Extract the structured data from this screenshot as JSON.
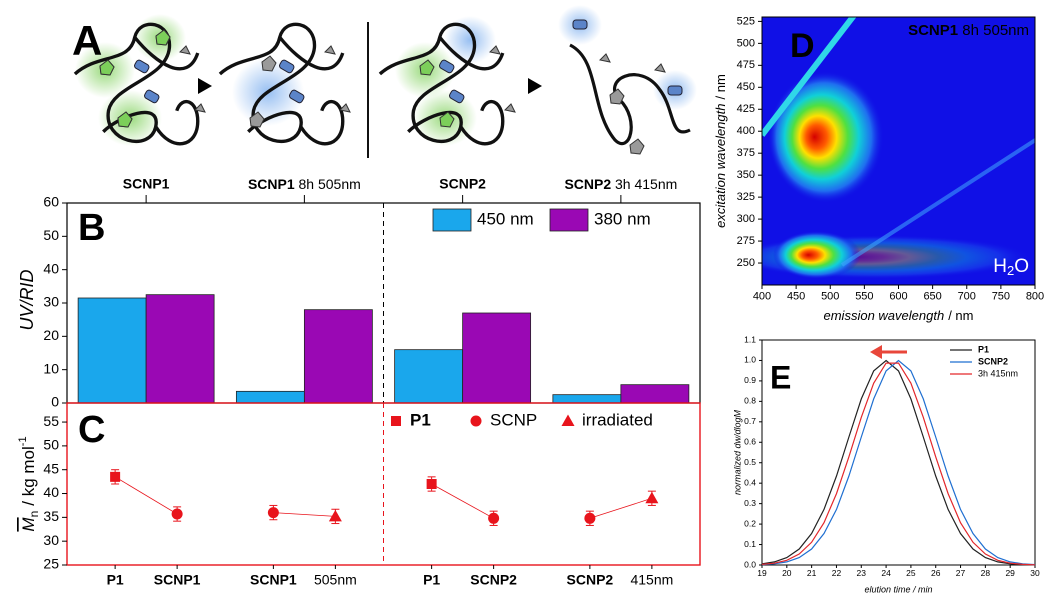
{
  "panel_labels": [
    "A",
    "B",
    "C",
    "D",
    "E"
  ],
  "chart_data": [
    {
      "type": "bar",
      "ylabel": "UV/RID",
      "ylim": [
        0,
        60
      ],
      "yticks": [
        0,
        10,
        20,
        30,
        40,
        50,
        60
      ],
      "categories": [
        "SCNP1",
        "SCNP1 8h 505nm",
        "SCNP2",
        "SCNP2 3h 415nm"
      ],
      "series": [
        {
          "name": "450 nm",
          "color": "#1aa7ec",
          "values": [
            31.5,
            3.5,
            16,
            2.5
          ]
        },
        {
          "name": "380 nm",
          "color": "#9a08b4",
          "values": [
            32.5,
            28,
            27,
            5.5
          ]
        }
      ],
      "legend": "top-right"
    },
    {
      "type": "errorbar",
      "color": "#e8141c",
      "ylabel": {
        "symbol": "M",
        "subscript": "n",
        "unit": "/ kg mol",
        "superscript": "-1"
      },
      "ylim": [
        25,
        59
      ],
      "yticks": [
        25,
        30,
        35,
        40,
        45,
        50,
        55
      ],
      "categories": [
        "P1",
        "SCNP1",
        "SCNP1",
        "505nm",
        "P1",
        "SCNP2",
        "SCNP2",
        "415nm"
      ],
      "bold_categories": [
        true,
        true,
        true,
        false,
        true,
        true,
        true,
        false
      ],
      "values": [
        43.5,
        35.7,
        36,
        35.2,
        42,
        34.8,
        34.8,
        39
      ],
      "errors": [
        1.5,
        1.5,
        1.5,
        1.5,
        1.5,
        1.5,
        1.5,
        1.5
      ],
      "markers": [
        "square",
        "circle",
        "circle",
        "triangle",
        "square",
        "circle",
        "circle",
        "triangle"
      ],
      "legend": [
        {
          "name": "P1",
          "marker": "square",
          "bold": true
        },
        {
          "name": "SCNP",
          "marker": "circle",
          "bold": false
        },
        {
          "name": "irradiated",
          "marker": "triangle",
          "bold": false
        }
      ]
    },
    {
      "type": "heatmap",
      "title": "SCNP1 8h 505nm",
      "annotation": {
        "text": "H",
        "subscript": "2",
        "rest": "O"
      },
      "xlabel": {
        "text": "emission wavelength",
        "unit": "/ nm"
      },
      "ylabel": {
        "text": "excitation wavelength",
        "unit": "/ nm"
      },
      "xlim": [
        400,
        800
      ],
      "xticks": [
        400,
        450,
        500,
        550,
        600,
        650,
        700,
        750,
        800
      ],
      "ylim": [
        225,
        530
      ],
      "yticks": [
        250,
        275,
        300,
        325,
        350,
        375,
        400,
        425,
        450,
        475,
        500,
        525
      ]
    },
    {
      "type": "line",
      "xlabel": "elution time / min",
      "ylabel": "normalized dw/dlogM",
      "xlim": [
        19,
        30
      ],
      "xticks": [
        19,
        20,
        21,
        22,
        23,
        24,
        25,
        26,
        27,
        28,
        29,
        30
      ],
      "ylim": [
        0,
        1.1
      ],
      "yticks": [
        {
          "value": 0,
          "label": "0.0"
        },
        0.1,
        0.2,
        0.3,
        0.4,
        0.5,
        0.6,
        0.7,
        0.8,
        0.9,
        {
          "value": 1,
          "label": "1.0"
        },
        1.1
      ],
      "x": [
        19,
        19.5,
        20,
        20.5,
        21,
        21.5,
        22,
        22.5,
        23,
        23.5,
        24,
        24.5,
        25,
        25.5,
        26,
        26.5,
        27,
        27.5,
        28,
        28.5,
        29,
        29.5,
        30
      ],
      "series": [
        {
          "name": "P1",
          "color": "#222222",
          "bold": true,
          "values": [
            0.006,
            0.015,
            0.036,
            0.078,
            0.154,
            0.272,
            0.435,
            0.626,
            0.812,
            0.949,
            1.0,
            0.949,
            0.812,
            0.626,
            0.435,
            0.272,
            0.154,
            0.078,
            0.036,
            0.015,
            0.006,
            0.002,
            0.001
          ]
        },
        {
          "name": "SCNP2",
          "color": "#1f6fd1",
          "bold": true,
          "values": [
            0.002,
            0.006,
            0.015,
            0.036,
            0.078,
            0.154,
            0.272,
            0.435,
            0.626,
            0.812,
            0.949,
            1.0,
            0.949,
            0.812,
            0.626,
            0.435,
            0.272,
            0.154,
            0.078,
            0.036,
            0.015,
            0.006,
            0.002
          ]
        },
        {
          "name": "3h 415nm",
          "color": "#e3272b",
          "bold": false,
          "values": [
            0.003,
            0.009,
            0.023,
            0.054,
            0.111,
            0.207,
            0.349,
            0.529,
            0.722,
            0.889,
            0.987,
            0.987,
            0.889,
            0.722,
            0.529,
            0.349,
            0.207,
            0.111,
            0.054,
            0.023,
            0.009,
            0.003,
            0.001
          ]
        }
      ],
      "legend": "top-right"
    }
  ]
}
